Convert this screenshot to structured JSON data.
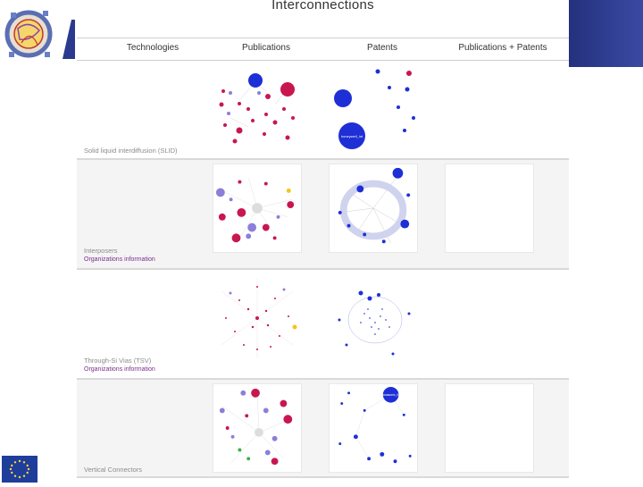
{
  "page": {
    "title": "Interconnections"
  },
  "table": {
    "headers": [
      "Technologies",
      "Publications",
      "Patents",
      "Publications + Patents"
    ],
    "rows": [
      {
        "label": "Solid liquid interdiffusion (SLID)",
        "link": ""
      },
      {
        "label": "Interposers",
        "link": "Organizations information"
      },
      {
        "label": "Through-Si Vias (TSV)",
        "link": "Organizations information"
      },
      {
        "label": "Vertical Connectors",
        "link": ""
      }
    ]
  },
  "graph_labels": {
    "slid_patents_big": "honeywell_int",
    "vertical_patents_big": "panasonic_ltd"
  },
  "colors": {
    "node_red": "#c8174f",
    "node_blue": "#1e2fd6",
    "node_purple": "#8b7fd9",
    "header_blue": "#2b3a8f",
    "link_purple": "#7a2d8c"
  }
}
